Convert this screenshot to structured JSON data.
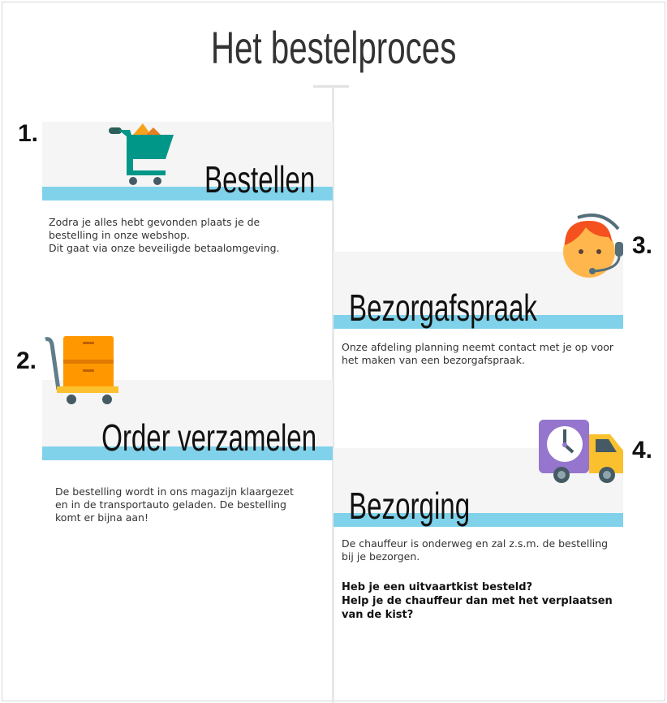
{
  "title": "Het bestelproces",
  "steps": [
    {
      "number": "1.",
      "heading": "Bestellen",
      "text": [
        "Zodra je alles hebt gevonden plaats je de",
        "bestelling in onze webshop.",
        "Dit gaat via onze beveiligde betaalomgeving."
      ],
      "icon": "shopping-cart-icon"
    },
    {
      "number": "2.",
      "heading": "Order verzamelen",
      "text": [
        "De bestelling wordt in ons magazijn klaargezet",
        "en in de transportauto geladen. De bestelling",
        "komt er bijna aan!"
      ],
      "icon": "hand-truck-boxes-icon"
    },
    {
      "number": "3.",
      "heading": "Bezorgafspraak",
      "text": [
        "Onze afdeling planning neemt contact met je op voor",
        "het maken van een bezorgafspraak."
      ],
      "icon": "headset-agent-icon"
    },
    {
      "number": "4.",
      "heading": "Bezorging",
      "text": [
        "De chauffeur is onderweg en zal z.s.m. de bestelling",
        "bij je bezorgen."
      ],
      "note": [
        "Heb je een uitvaartkist besteld?",
        "Help je de chauffeur dan met het verplaatsen",
        "van de kist?"
      ],
      "icon": "delivery-truck-clock-icon"
    }
  ],
  "colors": {
    "accent": "#80d2ea",
    "panel": "#f5f5f5"
  }
}
